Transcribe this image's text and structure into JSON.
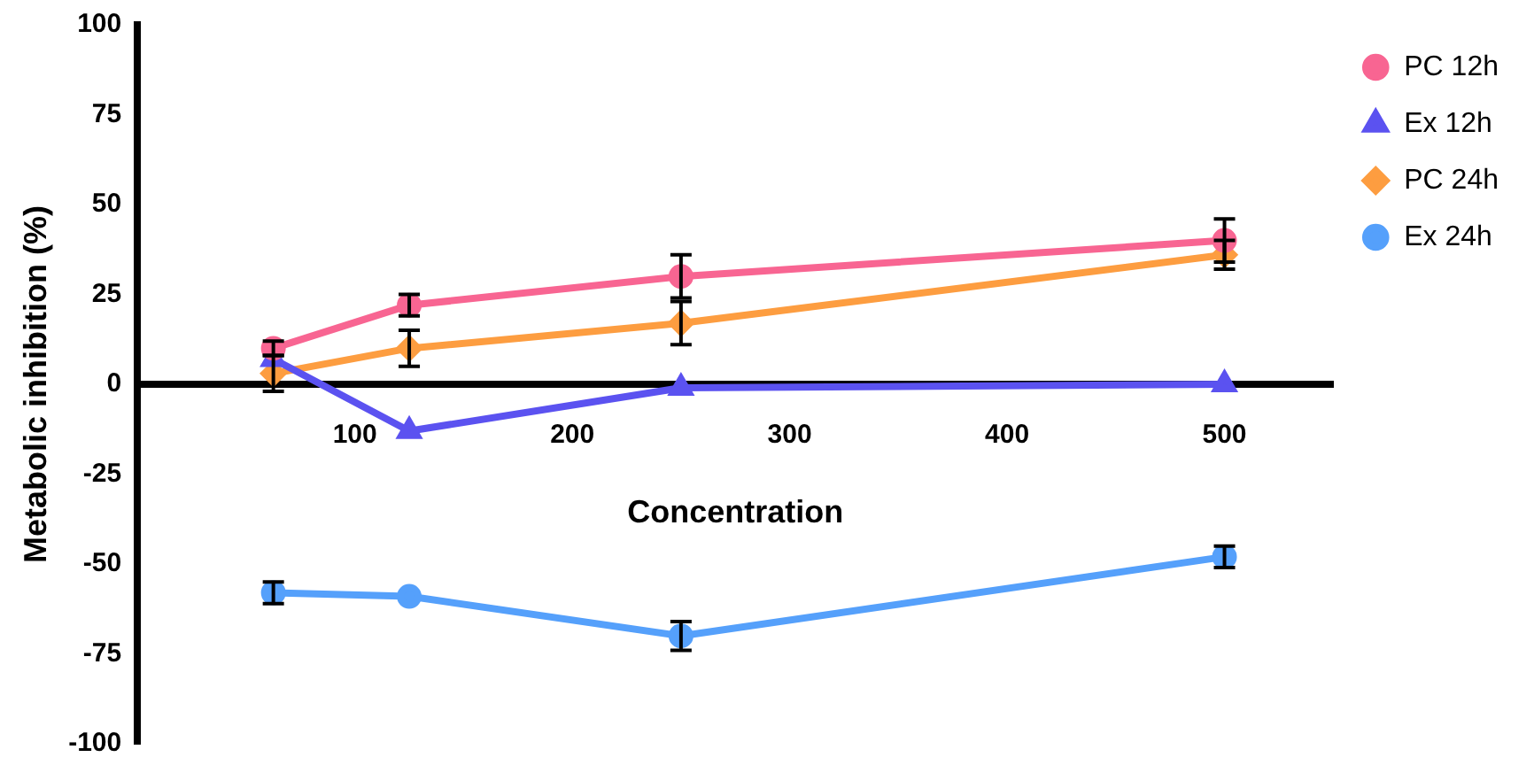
{
  "chart_data": {
    "type": "line",
    "xlabel": "Concentration",
    "ylabel": "Metabolic inhibition (%)",
    "x": [
      62.5,
      125,
      250,
      500
    ],
    "xlim": [
      0,
      550
    ],
    "xticks": [
      100,
      200,
      300,
      400,
      500
    ],
    "ylim": [
      -100,
      100
    ],
    "yticks": [
      -100,
      -75,
      -50,
      -25,
      0,
      25,
      50,
      75,
      100
    ],
    "grid": false,
    "legend": "right",
    "line_style": "solid",
    "series": [
      {
        "name": "PC 12h",
        "color": "#f86592",
        "marker": "circle",
        "values": [
          10,
          22,
          30,
          40
        ],
        "errors": [
          2,
          3,
          6,
          6
        ]
      },
      {
        "name": "Ex 12h",
        "color": "#5b52f0",
        "marker": "triangle",
        "values": [
          7,
          -13,
          -1,
          0
        ],
        "errors": [
          null,
          null,
          null,
          null
        ]
      },
      {
        "name": "PC 24h",
        "color": "#fd9d40",
        "marker": "diamond",
        "values": [
          3,
          10,
          17,
          36
        ],
        "errors": [
          5,
          5,
          6,
          4
        ]
      },
      {
        "name": "Ex 24h",
        "color": "#55a0fb",
        "marker": "circle",
        "values": [
          -58,
          -59,
          -70,
          -48
        ],
        "errors": [
          3,
          null,
          4,
          3
        ]
      }
    ]
  }
}
